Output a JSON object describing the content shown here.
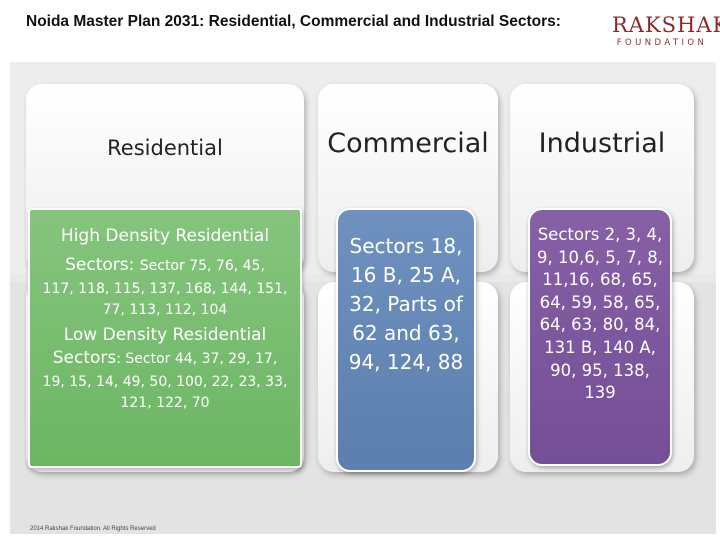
{
  "header": {
    "title": "Noida Master Plan 2031: Residential, Commercial and Industrial Sectors:",
    "logo_main": "RAKSHAK",
    "logo_sub": "FOUNDATION"
  },
  "columns": {
    "residential": {
      "heading": "Residential",
      "high_density_heading": "High Density Residential",
      "high_density_label": "Sectors:",
      "high_density_first": "Sector 75, 76, 45,",
      "high_density_rest": "117, 118, 115, 137, 168, 144, 151, 77, 113, 112, 104",
      "low_density_heading": "Low Density Residential",
      "low_density_label": "Sectors",
      "low_density_first": ": Sector 44, 37, 29, 17,",
      "low_density_rest": "19, 15, 14, 49, 50, 100, 22, 23, 33, 121, 122, 70"
    },
    "commercial": {
      "heading": "Commercial",
      "sectors": "Sectors 18, 16 B, 25 A, 32, Parts of 62 and 63, 94, 124, 88"
    },
    "industrial": {
      "heading": "Industrial",
      "sectors": "Sectors 2, 3, 4, 9, 10,6, 5, 7, 8, 11,16, 68, 65, 64, 59, 58, 65, 64, 63, 80, 84, 131 B, 140 A, 90, 95, 138, 139"
    }
  },
  "footer": {
    "copyright": "2014 Rakshak Foundation. All Rights Reserved"
  },
  "colors": {
    "green": "#72b96a",
    "blue": "#6587b5",
    "purple": "#7c579c",
    "logo": "#8a2a2a"
  }
}
